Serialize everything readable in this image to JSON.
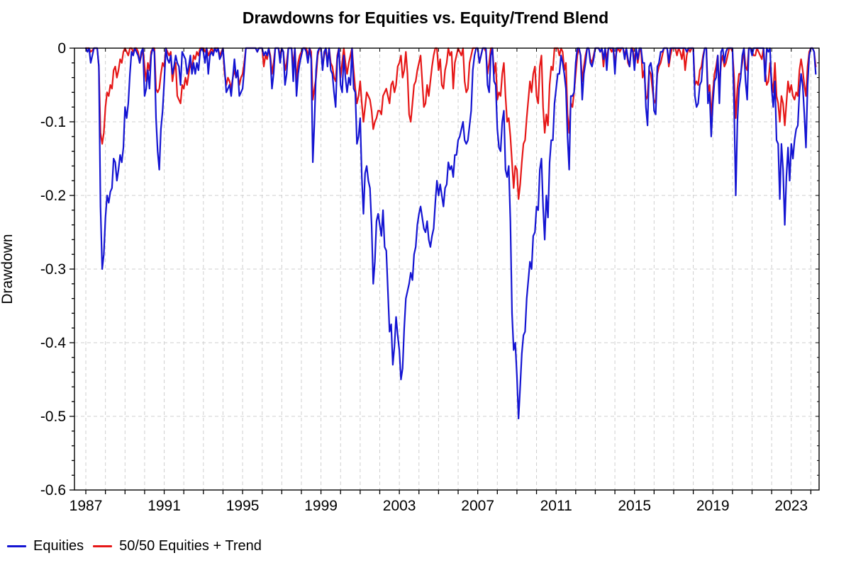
{
  "title": "Drawdowns for Equities vs. Equity/Trend Blend",
  "y_axis": {
    "label": "Drawdown",
    "tick_labels": [
      "0",
      "-0.1",
      "-0.2",
      "-0.3",
      "-0.4",
      "-0.5",
      "-0.6"
    ],
    "tick_values": [
      0,
      -0.1,
      -0.2,
      -0.3,
      -0.4,
      -0.5,
      -0.6
    ],
    "minor_tick_step": 0.02,
    "min": -0.6,
    "max": 0
  },
  "x_axis": {
    "tick_labels": [
      "1987",
      "1991",
      "1995",
      "1999",
      "2003",
      "2007",
      "2011",
      "2015",
      "2019",
      "2023"
    ],
    "tick_values": [
      1987,
      1991,
      1995,
      1999,
      2003,
      2007,
      2011,
      2015,
      2019,
      2023
    ],
    "minor_tick_step_years": 1,
    "view_min": 1986.42,
    "view_max": 2024.42
  },
  "legend": {
    "items": [
      {
        "label": "Equities",
        "color": "#1414d2"
      },
      {
        "label": "50/50 Equities + Trend",
        "color": "#e61717"
      }
    ],
    "position": "bottom-left"
  },
  "style": {
    "grid_color": "#cfcfcf",
    "axis_color": "#000000",
    "background": "#ffffff",
    "line_width": 2.2
  },
  "chart_data": {
    "type": "line",
    "title": "Drawdowns for Equities vs. Equity/Trend Blend",
    "xlabel": "",
    "ylabel": "Drawdown",
    "ylim": [
      -0.6,
      0
    ],
    "xlim": [
      1986.42,
      2024.42
    ],
    "grid": true,
    "legend_position": "bottom-left",
    "x_start_year": 1987.0,
    "x_step_months": 1,
    "series": [
      {
        "name": "Equities",
        "color": "#1414d2",
        "values": [
          0,
          -0.005,
          0,
          -0.02,
          -0.01,
          0,
          0,
          0,
          -0.025,
          -0.215,
          -0.3,
          -0.28,
          -0.23,
          -0.2,
          -0.21,
          -0.195,
          -0.19,
          -0.15,
          -0.155,
          -0.18,
          -0.165,
          -0.145,
          -0.155,
          -0.135,
          -0.08,
          -0.095,
          -0.075,
          -0.035,
          -0.005,
          -0.01,
          0,
          -0.005,
          -0.01,
          -0.02,
          -0.005,
          0,
          -0.065,
          -0.055,
          -0.03,
          -0.055,
          -0.01,
          0,
          -0.005,
          -0.095,
          -0.14,
          -0.165,
          -0.11,
          -0.085,
          -0.045,
          0,
          -0.015,
          -0.02,
          -0.01,
          -0.035,
          -0.025,
          -0.01,
          -0.02,
          -0.025,
          -0.05,
          -0.005,
          -0.01,
          -0.015,
          -0.035,
          -0.025,
          -0.01,
          -0.035,
          -0.02,
          -0.035,
          -0.02,
          -0.03,
          -0.005,
          0,
          -0.005,
          -0.02,
          0,
          -0.035,
          -0.01,
          -0.005,
          -0.01,
          0,
          -0.005,
          0,
          -0.015,
          -0.01,
          0,
          -0.027,
          -0.06,
          -0.055,
          -0.05,
          -0.065,
          -0.04,
          -0.015,
          -0.04,
          -0.03,
          -0.065,
          -0.06,
          -0.055,
          -0.03,
          0,
          0,
          0,
          0,
          0,
          0,
          0,
          -0.005,
          0,
          0,
          0,
          -0.01,
          -0.005,
          -0.01,
          0,
          -0.015,
          -0.055,
          -0.035,
          0,
          0,
          0,
          -0.02,
          0,
          -0.005,
          -0.05,
          -0.035,
          0,
          0,
          0,
          -0.045,
          0,
          -0.065,
          -0.035,
          -0.02,
          -0.01,
          0,
          0,
          -0.005,
          -0.02,
          0,
          -0.015,
          -0.155,
          -0.1,
          -0.03,
          -0.005,
          0,
          0,
          -0.03,
          -0.005,
          0,
          -0.025,
          0,
          -0.03,
          -0.035,
          -0.06,
          -0.08,
          -0.015,
          0,
          -0.05,
          -0.06,
          -0.01,
          -0.04,
          -0.06,
          -0.04,
          -0.05,
          0,
          -0.055,
          -0.06,
          -0.13,
          -0.12,
          -0.095,
          -0.175,
          -0.225,
          -0.17,
          -0.16,
          -0.18,
          -0.19,
          -0.24,
          -0.32,
          -0.29,
          -0.235,
          -0.225,
          -0.24,
          -0.255,
          -0.22,
          -0.27,
          -0.275,
          -0.33,
          -0.385,
          -0.375,
          -0.43,
          -0.405,
          -0.365,
          -0.39,
          -0.41,
          -0.45,
          -0.435,
          -0.38,
          -0.34,
          -0.33,
          -0.32,
          -0.305,
          -0.315,
          -0.28,
          -0.27,
          -0.24,
          -0.225,
          -0.215,
          -0.23,
          -0.245,
          -0.25,
          -0.235,
          -0.26,
          -0.27,
          -0.255,
          -0.245,
          -0.21,
          -0.18,
          -0.2,
          -0.185,
          -0.2,
          -0.215,
          -0.19,
          -0.185,
          -0.155,
          -0.165,
          -0.16,
          -0.175,
          -0.145,
          -0.145,
          -0.125,
          -0.12,
          -0.11,
          -0.1,
          -0.125,
          -0.13,
          -0.125,
          -0.105,
          -0.085,
          -0.03,
          -0.01,
          0,
          0,
          -0.02,
          -0.01,
          0,
          0,
          0,
          -0.05,
          -0.06,
          -0.01,
          0,
          -0.045,
          -0.05,
          -0.11,
          -0.135,
          -0.14,
          -0.1,
          -0.085,
          -0.165,
          -0.175,
          -0.16,
          -0.235,
          -0.36,
          -0.41,
          -0.4,
          -0.445,
          -0.503,
          -0.46,
          -0.415,
          -0.39,
          -0.385,
          -0.34,
          -0.315,
          -0.29,
          -0.3,
          -0.255,
          -0.25,
          -0.215,
          -0.22,
          -0.165,
          -0.15,
          -0.215,
          -0.26,
          -0.2,
          -0.23,
          -0.155,
          -0.125,
          -0.125,
          -0.075,
          -0.055,
          -0.035,
          -0.035,
          -0.01,
          -0.02,
          -0.035,
          -0.055,
          -0.12,
          -0.165,
          -0.065,
          -0.065,
          -0.06,
          -0.02,
          0,
          0,
          -0.01,
          -0.07,
          -0.035,
          -0.02,
          0,
          0,
          -0.02,
          -0.025,
          -0.015,
          0,
          0,
          0,
          -0.005,
          0,
          -0.015,
          0,
          -0.03,
          0,
          0,
          0,
          0,
          -0.035,
          0,
          0,
          0,
          0,
          0,
          -0.015,
          0,
          -0.015,
          -0.025,
          0,
          -0.005,
          -0.03,
          0,
          -0.015,
          0,
          0,
          -0.02,
          -0.02,
          -0.08,
          -0.105,
          -0.025,
          -0.02,
          -0.035,
          -0.085,
          -0.09,
          -0.025,
          -0.02,
          -0.005,
          -0.005,
          0,
          0,
          0,
          -0.02,
          0,
          0,
          0,
          0,
          0,
          0,
          0,
          0,
          0,
          0,
          -0.005,
          0,
          0,
          0,
          0,
          -0.065,
          -0.08,
          -0.075,
          -0.05,
          -0.045,
          -0.015,
          0,
          0,
          -0.075,
          -0.06,
          -0.12,
          -0.075,
          -0.045,
          -0.04,
          -0.01,
          -0.075,
          -0.005,
          0,
          -0.02,
          -0.005,
          0,
          0,
          0,
          0,
          -0.08,
          -0.2,
          -0.1,
          -0.055,
          -0.04,
          -0.01,
          0,
          -0.045,
          -0.07,
          0,
          0,
          -0.01,
          0,
          0,
          0,
          0,
          0,
          0,
          0,
          -0.045,
          0,
          -0.005,
          0,
          -0.055,
          -0.08,
          -0.045,
          -0.125,
          -0.13,
          -0.205,
          -0.13,
          -0.165,
          -0.24,
          -0.175,
          -0.135,
          -0.18,
          -0.13,
          -0.15,
          -0.125,
          -0.11,
          -0.105,
          -0.06,
          -0.035,
          -0.05,
          -0.09,
          -0.135,
          -0.05,
          -0.01,
          0,
          0,
          -0.005,
          -0.035
        ]
      },
      {
        "name": "50/50 Equities + Trend",
        "color": "#e61717",
        "values": [
          0,
          0,
          0,
          -0.005,
          -0.003,
          0,
          0,
          0,
          -0.025,
          -0.115,
          -0.13,
          -0.115,
          -0.08,
          -0.06,
          -0.065,
          -0.05,
          -0.055,
          -0.03,
          -0.025,
          -0.04,
          -0.03,
          -0.015,
          -0.02,
          -0.005,
          0,
          -0.005,
          -0.01,
          0,
          0,
          -0.005,
          0,
          0,
          -0.005,
          -0.02,
          -0.01,
          0,
          -0.025,
          -0.045,
          -0.02,
          -0.03,
          -0.005,
          0,
          0,
          -0.055,
          -0.06,
          -0.055,
          -0.035,
          -0.02,
          -0.025,
          0,
          -0.005,
          -0.01,
          -0.005,
          -0.045,
          -0.03,
          -0.02,
          -0.065,
          -0.07,
          -0.075,
          -0.05,
          -0.055,
          -0.04,
          -0.05,
          -0.035,
          -0.02,
          -0.03,
          -0.01,
          -0.015,
          -0.005,
          -0.01,
          0,
          0,
          0,
          -0.005,
          0,
          -0.01,
          -0.005,
          0,
          -0.005,
          0,
          0,
          0,
          -0.01,
          -0.005,
          0,
          -0.035,
          -0.05,
          -0.04,
          -0.045,
          -0.055,
          -0.04,
          -0.03,
          -0.04,
          -0.035,
          -0.05,
          -0.04,
          -0.035,
          -0.02,
          0,
          0,
          0,
          0,
          0,
          0,
          0,
          -0.005,
          0,
          0,
          0,
          -0.025,
          -0.01,
          -0.015,
          0,
          -0.01,
          -0.035,
          -0.02,
          0,
          0,
          0,
          -0.01,
          0,
          -0.005,
          -0.03,
          -0.02,
          0,
          0,
          0,
          -0.025,
          0,
          -0.045,
          -0.02,
          -0.01,
          -0.005,
          0,
          0,
          0,
          -0.01,
          0,
          -0.005,
          -0.07,
          -0.055,
          -0.04,
          -0.01,
          0,
          0,
          -0.025,
          -0.01,
          0,
          -0.02,
          0,
          -0.02,
          -0.025,
          -0.04,
          -0.045,
          -0.01,
          0,
          -0.04,
          -0.02,
          0,
          -0.02,
          -0.035,
          -0.02,
          -0.01,
          0,
          -0.03,
          -0.055,
          -0.075,
          -0.065,
          -0.045,
          -0.075,
          -0.1,
          -0.08,
          -0.06,
          -0.065,
          -0.07,
          -0.085,
          -0.11,
          -0.1,
          -0.095,
          -0.085,
          -0.085,
          -0.09,
          -0.065,
          -0.06,
          -0.055,
          -0.065,
          -0.075,
          -0.05,
          -0.045,
          -0.06,
          -0.05,
          -0.025,
          -0.02,
          -0.01,
          -0.04,
          -0.03,
          -0.005,
          -0.035,
          -0.09,
          -0.1,
          -0.075,
          -0.05,
          -0.045,
          -0.03,
          -0.02,
          -0.01,
          -0.045,
          -0.08,
          -0.075,
          -0.05,
          -0.065,
          -0.045,
          -0.025,
          -0.01,
          0,
          0,
          -0.03,
          -0.015,
          -0.05,
          -0.055,
          -0.03,
          -0.02,
          0,
          -0.01,
          -0.005,
          -0.055,
          -0.02,
          -0.01,
          0,
          -0.005,
          -0.01,
          0,
          -0.045,
          -0.06,
          -0.055,
          -0.02,
          -0.01,
          0,
          0,
          0,
          0,
          -0.02,
          -0.01,
          0,
          0,
          -0.005,
          -0.035,
          -0.02,
          0,
          0,
          -0.035,
          -0.02,
          -0.07,
          -0.06,
          -0.065,
          -0.035,
          -0.02,
          -0.065,
          -0.1,
          -0.095,
          -0.12,
          -0.155,
          -0.19,
          -0.16,
          -0.165,
          -0.205,
          -0.185,
          -0.155,
          -0.13,
          -0.125,
          -0.095,
          -0.07,
          -0.045,
          -0.06,
          -0.035,
          -0.025,
          -0.065,
          -0.075,
          -0.025,
          -0.01,
          -0.08,
          -0.115,
          -0.09,
          -0.105,
          -0.05,
          -0.025,
          -0.03,
          0,
          0,
          0,
          -0.01,
          0,
          -0.005,
          -0.03,
          -0.02,
          -0.09,
          -0.115,
          -0.075,
          -0.08,
          -0.06,
          -0.035,
          -0.01,
          0,
          -0.01,
          -0.045,
          -0.025,
          -0.01,
          0,
          0,
          -0.015,
          -0.02,
          -0.01,
          0,
          0,
          0,
          -0.005,
          0,
          -0.025,
          0,
          -0.015,
          0,
          0,
          -0.005,
          0,
          -0.02,
          -0.005,
          0,
          -0.005,
          0,
          0,
          -0.01,
          0,
          -0.02,
          -0.025,
          0,
          0,
          -0.02,
          0,
          -0.02,
          -0.005,
          0,
          -0.04,
          -0.03,
          -0.07,
          -0.065,
          -0.03,
          -0.035,
          -0.055,
          -0.075,
          -0.07,
          -0.035,
          -0.025,
          -0.02,
          -0.01,
          0,
          0,
          0,
          -0.025,
          -0.01,
          0,
          0,
          0,
          -0.01,
          0,
          -0.005,
          -0.015,
          0,
          -0.03,
          -0.01,
          0,
          -0.005,
          0,
          0,
          -0.05,
          -0.045,
          -0.05,
          -0.03,
          -0.025,
          -0.01,
          0,
          0,
          -0.06,
          -0.05,
          -0.095,
          -0.06,
          -0.035,
          -0.025,
          -0.01,
          -0.055,
          -0.02,
          -0.01,
          -0.025,
          -0.02,
          -0.01,
          0,
          0,
          -0.005,
          -0.04,
          -0.095,
          -0.055,
          -0.035,
          -0.035,
          -0.02,
          0,
          -0.025,
          -0.03,
          0,
          0,
          -0.005,
          -0.01,
          -0.01,
          0,
          -0.005,
          -0.01,
          -0.015,
          0,
          -0.03,
          -0.05,
          -0.045,
          -0.02,
          -0.045,
          -0.06,
          -0.02,
          -0.065,
          -0.075,
          -0.1,
          -0.065,
          -0.075,
          -0.105,
          -0.075,
          -0.045,
          -0.06,
          -0.05,
          -0.065,
          -0.07,
          -0.06,
          -0.065,
          -0.03,
          -0.015,
          -0.03,
          -0.05,
          -0.065,
          -0.025,
          -0.005,
          0,
          0,
          -0.005,
          -0.025
        ]
      }
    ]
  }
}
